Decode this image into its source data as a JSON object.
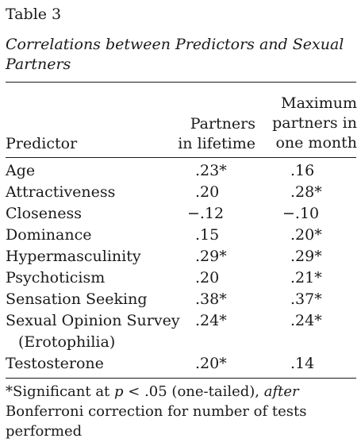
{
  "table": {
    "label": "Table 3",
    "title": "Correlations between Predictors and Sexual Partners",
    "headers": {
      "predictor": "Predictor",
      "col1_line1": "Partners",
      "col1_line2": "in lifetime",
      "col2_line1": "Maximum",
      "col2_line2": "partners in",
      "col2_line3": "one month"
    },
    "rows": [
      {
        "name": "Age",
        "c1": ".23*",
        "c2": ".16"
      },
      {
        "name": "Attractiveness",
        "c1": ".20",
        "c2": ".28*"
      },
      {
        "name": "Closeness",
        "c1": "−.12",
        "c2": "−.10"
      },
      {
        "name": "Dominance",
        "c1": ".15",
        "c2": ".20*"
      },
      {
        "name": "Hypermasculinity",
        "c1": ".29*",
        "c2": ".29*"
      },
      {
        "name": "Psychoticism",
        "c1": ".20",
        "c2": ".21*"
      },
      {
        "name": "Sensation Seeking",
        "c1": ".38*",
        "c2": ".37*"
      },
      {
        "name": "Sexual Opinion Survey",
        "name_line2": "(Erotophilia)",
        "c1": ".24*",
        "c2": ".24*"
      },
      {
        "name": "Testosterone",
        "c1": ".20*",
        "c2": ".14"
      }
    ],
    "footnote": {
      "part1": "*Significant at ",
      "p": "p",
      "part2": " < .05 (one-tailed), ",
      "after": "after",
      "part3": " Bonferroni correction for number of tests performed"
    }
  }
}
